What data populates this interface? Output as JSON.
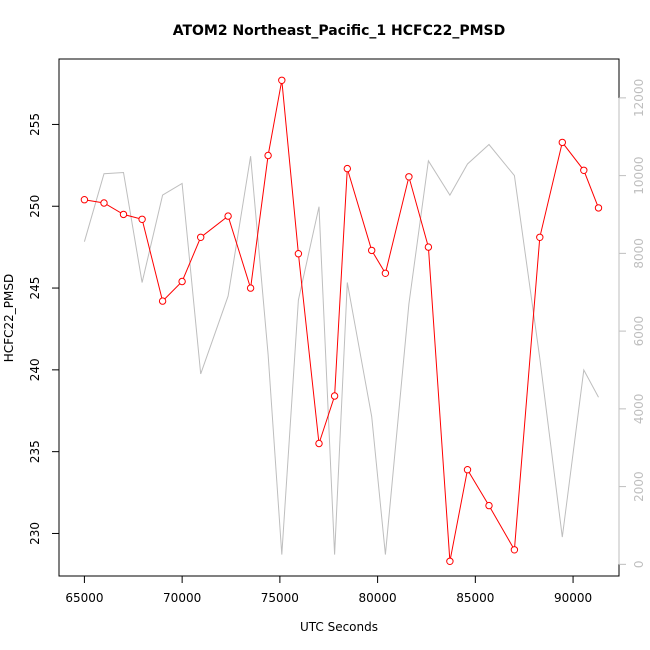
{
  "chart_data": {
    "type": "line",
    "title": "ATOM2 Northeast_Pacific_1 HCFC22_PMSD",
    "xlabel": "UTC Seconds",
    "ylabel": "HCFC22_PMSD",
    "xlim": [
      63700,
      92350
    ],
    "ylim": [
      227.4,
      259.0
    ],
    "y2lim": [
      -300,
      13000
    ],
    "x_ticks": [
      65000,
      70000,
      75000,
      80000,
      85000,
      90000
    ],
    "x_tick_labels": [
      "65000",
      "70000",
      "75000",
      "80000",
      "85000",
      "90000"
    ],
    "y_ticks": [
      230,
      235,
      240,
      245,
      250,
      255
    ],
    "y_tick_labels": [
      "230",
      "235",
      "240",
      "245",
      "250",
      "255"
    ],
    "y2_ticks": [
      0,
      2000,
      4000,
      6000,
      8000,
      10000,
      12000
    ],
    "y2_tick_labels": [
      "0",
      "2000",
      "4000",
      "6000",
      "8000",
      "10000",
      "12000"
    ],
    "colors": {
      "primary": "#ff0000",
      "secondary": "#bebebe",
      "axis": "#000000",
      "secondary_axis": "#bebebe"
    },
    "series": [
      {
        "axis": "left",
        "color": "#ff0000",
        "markers": "open-circle",
        "x": [
          65000,
          66000,
          67000,
          67950,
          69000,
          70000,
          70950,
          72350,
          73500,
          74400,
          75100,
          75950,
          77000,
          77800,
          78450,
          79700,
          80400,
          81600,
          82600,
          83700,
          84600,
          85700,
          87000,
          88300,
          89450,
          90550,
          91300
        ],
        "y": [
          250.4,
          250.2,
          249.5,
          249.2,
          244.2,
          245.4,
          248.1,
          249.4,
          245.0,
          253.1,
          257.7,
          247.1,
          235.5,
          238.4,
          252.3,
          247.3,
          245.9,
          251.8,
          247.5,
          228.3,
          233.9,
          231.7,
          229.0,
          248.1,
          253.9,
          252.2,
          249.9
        ]
      },
      {
        "axis": "right",
        "color": "#bebebe",
        "markers": "none",
        "x": [
          65000,
          66000,
          67000,
          67950,
          69000,
          70000,
          70950,
          72350,
          73500,
          74400,
          75100,
          75950,
          77000,
          77800,
          78450,
          79700,
          80400,
          81600,
          82600,
          83700,
          84600,
          85700,
          87000,
          88300,
          89450,
          90550,
          91300
        ],
        "y": [
          8300,
          10050,
          10080,
          7250,
          9500,
          9800,
          4900,
          6900,
          10500,
          5400,
          250,
          6800,
          9200,
          250,
          7250,
          3800,
          250,
          6700,
          10380,
          9500,
          10300,
          10800,
          10000,
          5300,
          700,
          5000,
          4300
        ]
      }
    ]
  }
}
